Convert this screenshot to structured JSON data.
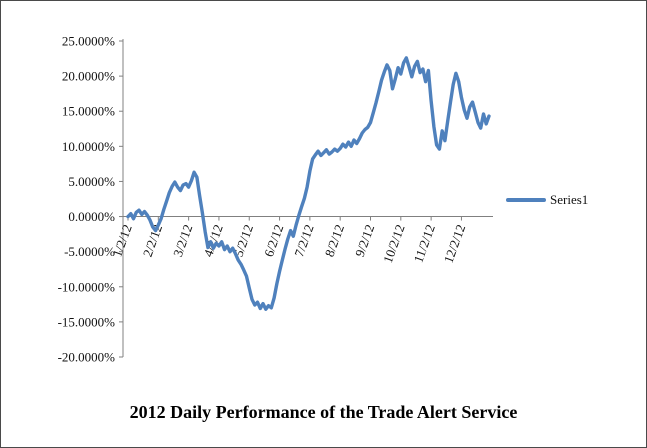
{
  "colors": {
    "series_line": "#4F81BD",
    "axis": "#808080",
    "text": "#111111",
    "page_border": "#4a4a4a",
    "background": "#ffffff"
  },
  "chart_data": {
    "type": "line",
    "title": "2012 Daily Performance of the Trade Alert Service",
    "xlabel": "",
    "ylabel": "",
    "ylim": [
      -20,
      25
    ],
    "grid": false,
    "legend_position": "right",
    "y_tick_values": [
      25,
      20,
      15,
      10,
      5,
      0,
      -5,
      -10,
      -15,
      -20
    ],
    "y_tick_labels": [
      "25.0000%",
      "20.0000%",
      "15.0000%",
      "10.0000%",
      "5.0000%",
      "0.0000%",
      "-5.0000%",
      "-10.0000%",
      "-15.0000%",
      "-20.0000%"
    ],
    "x_tick_labels": [
      "1/2/12",
      "2/2/12",
      "3/2/12",
      "4/2/12",
      "5/2/12",
      "6/2/12",
      "7/2/12",
      "8/2/12",
      "9/2/12",
      "10/2/12",
      "11/2/12",
      "12/2/12"
    ],
    "points_per_month": 11,
    "units": "percent",
    "series": [
      {
        "name": "Series1",
        "color": "#4F81BD",
        "values": [
          0.0,
          0.4,
          -0.3,
          0.6,
          0.9,
          0.3,
          0.7,
          0.2,
          -0.5,
          -1.5,
          -2.0,
          -1.2,
          -0.3,
          1.0,
          2.2,
          3.4,
          4.3,
          4.9,
          4.2,
          3.7,
          4.5,
          4.7,
          4.2,
          5.1,
          6.3,
          5.6,
          3.0,
          0.5,
          -2.2,
          -4.4,
          -3.6,
          -4.5,
          -3.8,
          -4.2,
          -3.6,
          -4.7,
          -4.2,
          -5.0,
          -4.5,
          -5.3,
          -6.2,
          -6.8,
          -7.6,
          -8.5,
          -10.2,
          -11.8,
          -12.6,
          -12.2,
          -13.1,
          -12.4,
          -13.2,
          -12.7,
          -13.0,
          -11.6,
          -9.6,
          -7.8,
          -6.2,
          -4.6,
          -3.2,
          -2.0,
          -2.8,
          -1.2,
          0.2,
          1.4,
          2.6,
          4.2,
          6.5,
          8.2,
          8.8,
          9.3,
          8.7,
          9.1,
          9.5,
          8.9,
          9.2,
          9.6,
          9.3,
          9.7,
          10.3,
          9.9,
          10.6,
          10.0,
          10.9,
          10.4,
          11.1,
          11.9,
          12.4,
          12.7,
          13.4,
          14.8,
          16.2,
          17.8,
          19.4,
          20.6,
          21.6,
          20.8,
          18.2,
          19.6,
          21.2,
          20.3,
          21.9,
          22.6,
          21.3,
          19.9,
          21.4,
          22.1,
          20.5,
          21.0,
          19.2,
          20.8,
          16.5,
          12.8,
          10.2,
          9.6,
          12.2,
          10.8,
          13.6,
          16.2,
          18.8,
          20.4,
          19.2,
          17.0,
          15.2,
          14.0,
          15.6,
          16.3,
          14.9,
          13.4,
          12.6,
          14.6,
          13.2,
          14.3
        ]
      }
    ]
  }
}
